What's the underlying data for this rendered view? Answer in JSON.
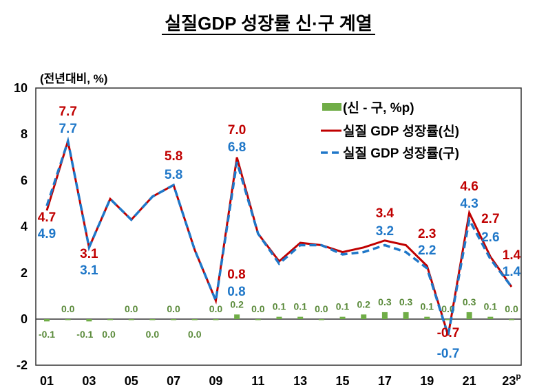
{
  "title": "실질GDP 성장률 신·구 계열",
  "chart_data": {
    "type": "bar+line",
    "title": "실질GDP 성장률 신·구 계열",
    "ylabel": "(전년대비, %)",
    "ylim": [
      -2,
      10
    ],
    "yticks": [
      "-2",
      "0",
      "2",
      "4",
      "6",
      "8",
      "10"
    ],
    "categories": [
      "01",
      "02",
      "03",
      "04",
      "05",
      "06",
      "07",
      "08",
      "09",
      "10",
      "11",
      "12",
      "13",
      "14",
      "15",
      "16",
      "17",
      "18",
      "19",
      "20",
      "21",
      "22",
      "23"
    ],
    "xtick_labels": [
      "01",
      "03",
      "05",
      "07",
      "09",
      "11",
      "13",
      "15",
      "17",
      "19",
      "21",
      "23"
    ],
    "xtick_superscript_last": "p",
    "legend_position": "top-right",
    "grid": false,
    "series": [
      {
        "name": "(신 - 구, %p)",
        "type": "bar",
        "color": "#70ad47",
        "values": [
          -0.1,
          0.0,
          -0.1,
          0.0,
          0.0,
          0.0,
          0.0,
          0.0,
          0.0,
          0.2,
          0.0,
          0.1,
          0.1,
          0.0,
          0.1,
          0.2,
          0.3,
          0.3,
          0.1,
          0.0,
          0.3,
          0.1,
          0.0
        ]
      },
      {
        "name": "실질 GDP 성장률(신)",
        "type": "line",
        "color": "#c00000",
        "values": [
          4.7,
          7.7,
          3.1,
          5.2,
          4.3,
          5.3,
          5.8,
          3.0,
          0.8,
          7.0,
          3.7,
          2.5,
          3.3,
          3.2,
          2.9,
          3.1,
          3.4,
          3.2,
          2.3,
          -0.7,
          4.6,
          2.7,
          1.4
        ],
        "labels": {
          "01": "4.7",
          "02": "7.7",
          "03": "3.1",
          "07": "5.8",
          "09": "0.8",
          "10": "7.0",
          "17": "3.4",
          "19": "2.3",
          "20": "-0.7",
          "21": "4.6",
          "22": "2.7",
          "23": "1.4"
        }
      },
      {
        "name": "실질 GDP 성장률(구)",
        "type": "line-dashed",
        "color": "#1f77c8",
        "values": [
          4.9,
          7.7,
          3.1,
          5.2,
          4.3,
          5.3,
          5.8,
          3.0,
          0.8,
          6.8,
          3.7,
          2.4,
          3.2,
          3.2,
          2.8,
          2.9,
          3.2,
          2.9,
          2.2,
          -0.7,
          4.3,
          2.6,
          1.4
        ],
        "labels": {
          "01": "4.9",
          "02": "7.7",
          "03": "3.1",
          "07": "5.8",
          "09": "0.8",
          "10": "6.8",
          "17": "3.2",
          "19": "2.2",
          "20": "-0.7",
          "21": "4.3",
          "22": "2.6",
          "23": "1.4"
        }
      }
    ]
  }
}
